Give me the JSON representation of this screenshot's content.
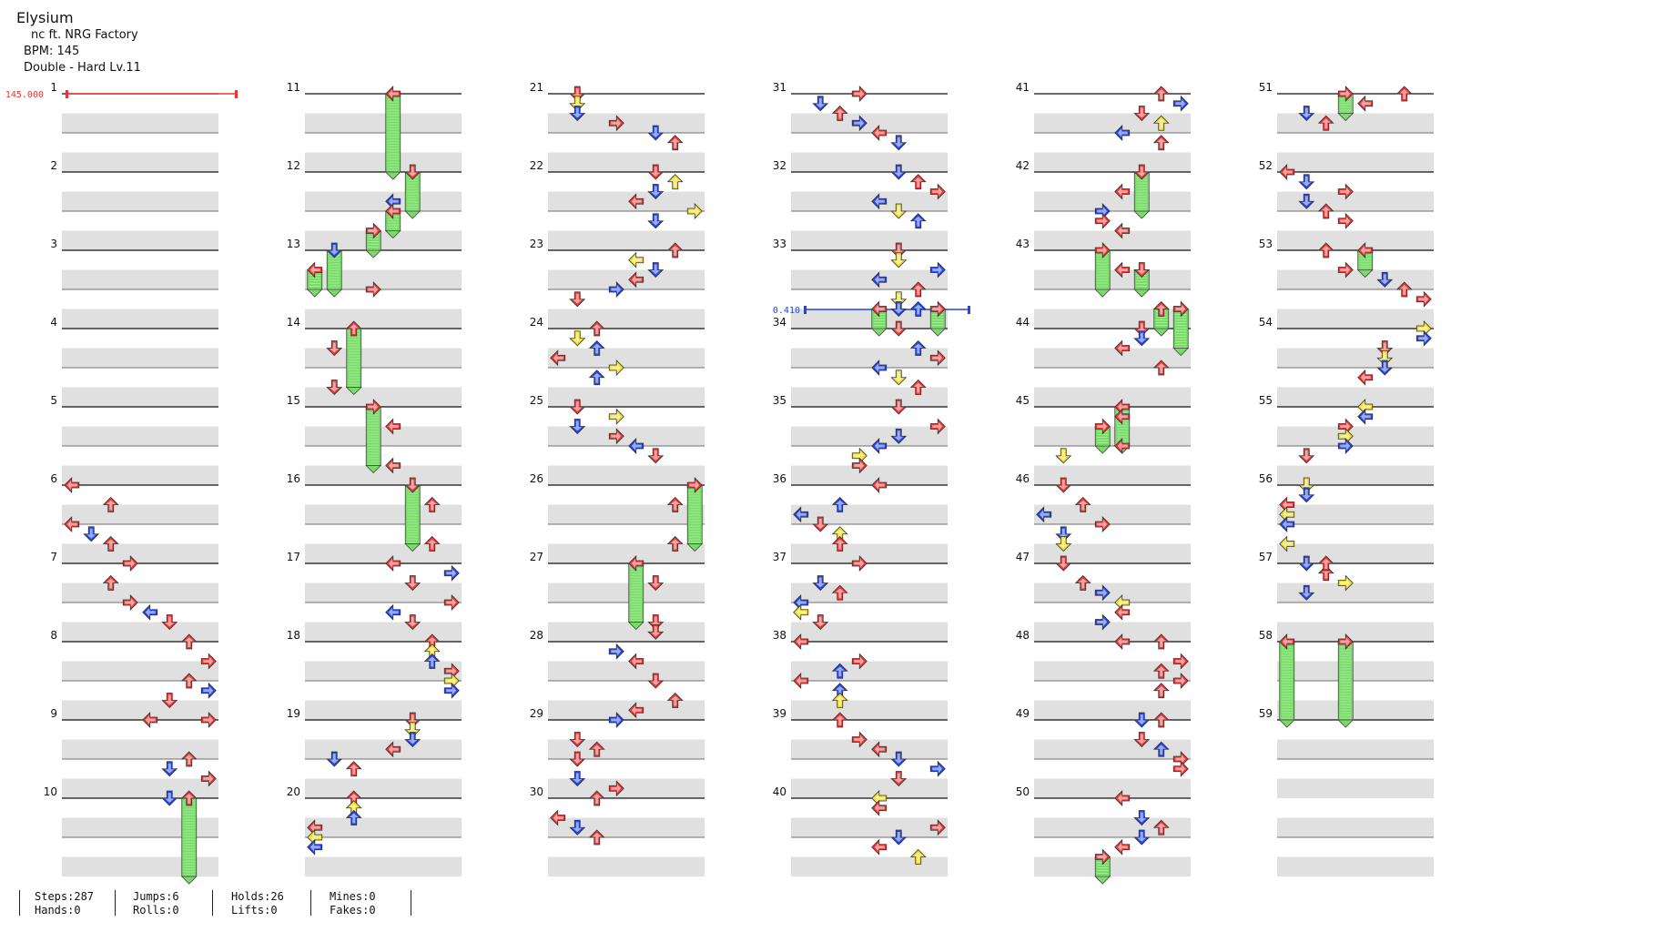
{
  "song": {
    "title": "Elysium",
    "artist": "nc ft. NRG Factory",
    "bpm_label": "BPM: 145",
    "difficulty_label": "Double - Hard Lv.11"
  },
  "markers": {
    "bpm_change": "145.000",
    "stop": "0.410"
  },
  "colors": {
    "red": "#ee3333",
    "blue": "#2244ee",
    "yellow": "#eedd22",
    "hold": "#77dd66",
    "band": "#e0e0e0",
    "bpm_line": "#ee3333",
    "stop_line": "#2244ee"
  },
  "stats": [
    {
      "label": "Steps:287",
      "label2": "Hands:0"
    },
    {
      "label": "Jumps:6",
      "label2": "Rolls:0"
    },
    {
      "label": "Holds:26",
      "label2": "Lifts:0"
    },
    {
      "label": "Mines:0",
      "label2": "Fakes:0"
    }
  ],
  "measures": [
    "1",
    "2",
    "3",
    "4",
    "5",
    "6",
    "7",
    "8",
    "9",
    "10",
    "11",
    "12",
    "13",
    "14",
    "15",
    "16",
    "17",
    "18",
    "19",
    "20",
    "21",
    "22",
    "23",
    "24",
    "25",
    "26",
    "27",
    "28",
    "29",
    "30",
    "31",
    "32",
    "33",
    "34",
    "35",
    "36",
    "37",
    "38",
    "39",
    "40",
    "41",
    "42",
    "43",
    "44",
    "45",
    "46",
    "47",
    "48",
    "49",
    "50",
    "51",
    "52",
    "53",
    "54",
    "55",
    "56",
    "57",
    "58",
    "59"
  ],
  "icons": {
    "arrow": "arrow-icon",
    "hold": "hold-note-icon"
  }
}
